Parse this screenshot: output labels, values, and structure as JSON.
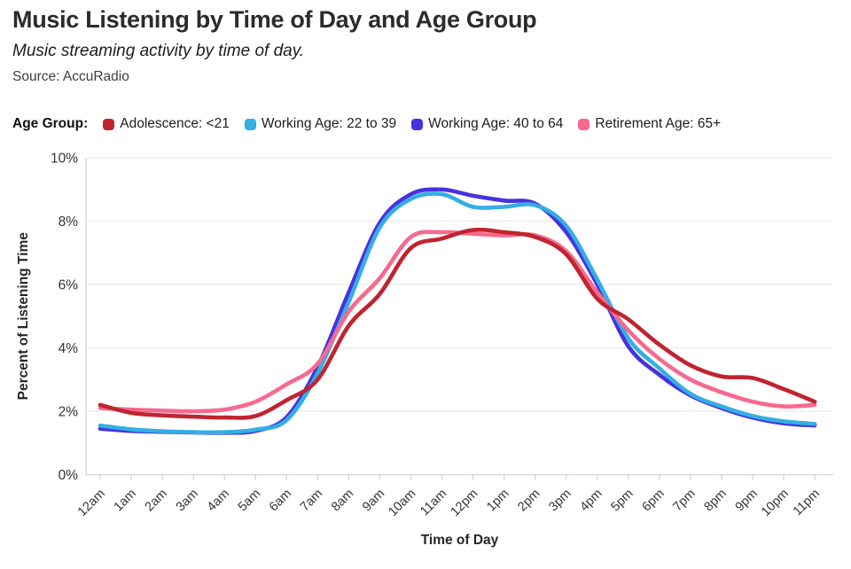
{
  "page": {
    "title": "Music Listening by Time of Day and Age Group",
    "subtitle": "Music streaming activity by time of day.",
    "source": "Source: AccuRadio"
  },
  "legend": {
    "label": "Age Group:"
  },
  "chart_data": {
    "type": "line",
    "title": "Music Listening by Time of Day and Age Group",
    "xlabel": "Time of Day",
    "ylabel": "Percent of Listening Time",
    "x": [
      "12am",
      "1am",
      "2am",
      "3am",
      "4am",
      "5am",
      "6am",
      "7am",
      "8am",
      "9am",
      "10am",
      "11am",
      "12pm",
      "1pm",
      "2pm",
      "3pm",
      "4pm",
      "5pm",
      "6pm",
      "7pm",
      "8pm",
      "9pm",
      "10pm",
      "11pm"
    ],
    "ylim": [
      0,
      10
    ],
    "yticks": [
      0,
      2,
      4,
      6,
      8,
      10
    ],
    "ytick_labels": [
      "0%",
      "2%",
      "4%",
      "6%",
      "8%",
      "10%"
    ],
    "grid": true,
    "legend_position": "top",
    "series": [
      {
        "name": "Adolescence: <21",
        "color": "#C0242F",
        "values": [
          2.2,
          1.95,
          1.87,
          1.83,
          1.8,
          1.85,
          2.35,
          3.0,
          4.7,
          5.7,
          7.15,
          7.45,
          7.72,
          7.65,
          7.5,
          6.95,
          5.55,
          4.9,
          4.1,
          3.45,
          3.1,
          3.05,
          2.7,
          2.3
        ]
      },
      {
        "name": "Working Age: 22 to 39",
        "color": "#34AEE4",
        "values": [
          1.55,
          1.43,
          1.37,
          1.34,
          1.34,
          1.42,
          1.72,
          3.2,
          5.45,
          7.8,
          8.7,
          8.85,
          8.45,
          8.45,
          8.5,
          7.85,
          6.15,
          4.3,
          3.35,
          2.55,
          2.15,
          1.85,
          1.68,
          1.6
        ]
      },
      {
        "name": "Working Age: 40 to 64",
        "color": "#4732DF",
        "values": [
          1.45,
          1.38,
          1.35,
          1.33,
          1.32,
          1.38,
          1.81,
          3.4,
          5.75,
          7.95,
          8.85,
          9.0,
          8.8,
          8.65,
          8.55,
          7.65,
          6.0,
          4.05,
          3.15,
          2.5,
          2.1,
          1.8,
          1.62,
          1.55
        ]
      },
      {
        "name": "Retirement Age: 65+",
        "color": "#F7698F",
        "values": [
          2.1,
          2.05,
          2.02,
          2.0,
          2.05,
          2.3,
          2.85,
          3.5,
          5.15,
          6.2,
          7.5,
          7.65,
          7.6,
          7.55,
          7.55,
          7.05,
          5.75,
          4.55,
          3.65,
          3.0,
          2.6,
          2.3,
          2.15,
          2.2
        ]
      }
    ]
  }
}
